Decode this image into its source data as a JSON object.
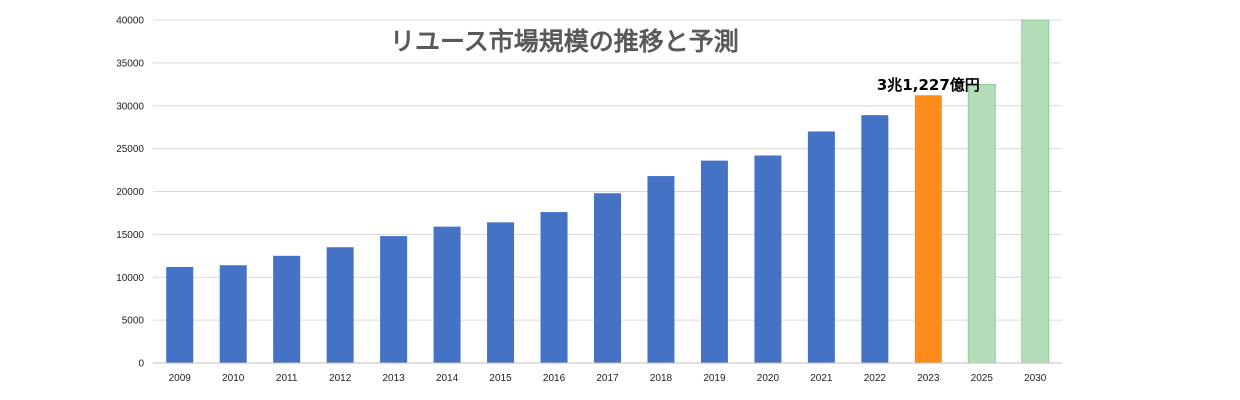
{
  "chart_data": {
    "type": "bar",
    "title": "リユース市場規模の推移と予測",
    "categories": [
      "2009",
      "2010",
      "2011",
      "2012",
      "2013",
      "2014",
      "2015",
      "2016",
      "2017",
      "2018",
      "2019",
      "2020",
      "2021",
      "2022",
      "2023",
      "2025",
      "2030"
    ],
    "values": [
      11200,
      11400,
      12500,
      13500,
      14800,
      15900,
      16400,
      17600,
      19800,
      21800,
      23600,
      24200,
      27000,
      28900,
      31227,
      32500,
      40000
    ],
    "bar_colors": [
      "#4472c4",
      "#4472c4",
      "#4472c4",
      "#4472c4",
      "#4472c4",
      "#4472c4",
      "#4472c4",
      "#4472c4",
      "#4472c4",
      "#4472c4",
      "#4472c4",
      "#4472c4",
      "#4472c4",
      "#4472c4",
      "#ff8c1a",
      "#b3dcb9",
      "#b3dcb9"
    ],
    "bar_borders": [
      "none",
      "none",
      "none",
      "none",
      "none",
      "none",
      "none",
      "none",
      "none",
      "none",
      "none",
      "none",
      "none",
      "none",
      "none",
      "#8fcc98",
      "#8fcc98"
    ],
    "ylim": [
      0,
      40000
    ],
    "yticks": [
      0,
      5000,
      10000,
      15000,
      20000,
      25000,
      30000,
      35000,
      40000
    ],
    "xlabel": "",
    "ylabel": "",
    "grid": true,
    "annotation": {
      "text": "3兆1,227億円",
      "category": "2023"
    }
  }
}
